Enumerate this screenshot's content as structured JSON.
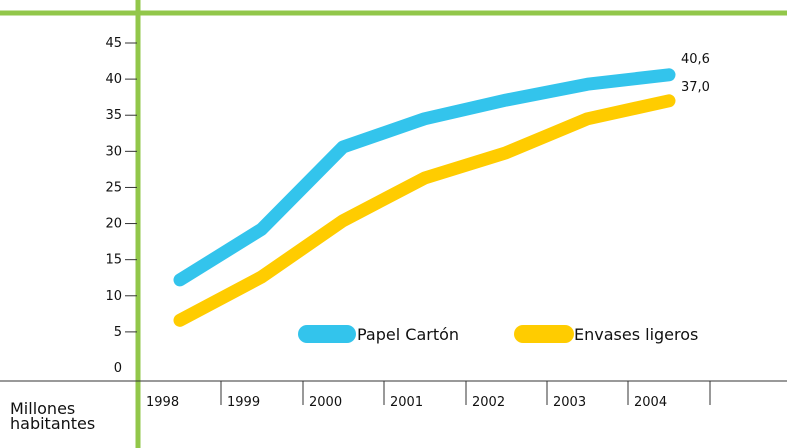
{
  "chart_data": {
    "type": "line",
    "categories": [
      "1998",
      "1999",
      "2000",
      "2001",
      "2002",
      "2003",
      "2004"
    ],
    "y_ticks": [
      "0",
      "5",
      "10",
      "15",
      "20",
      "25",
      "30",
      "35",
      "40",
      "45"
    ],
    "ylim": [
      0,
      45
    ],
    "ylabel": [
      "Millones",
      "habitantes"
    ],
    "series": [
      {
        "name": "Papel Cartón",
        "color": "#33c4ec",
        "values": [
          12.2,
          19.2,
          30.6,
          34.5,
          37.1,
          39.3,
          40.6
        ],
        "end_label": "40,6"
      },
      {
        "name": "Envases ligeros",
        "color": "#ffcc00",
        "values": [
          6.6,
          12.6,
          20.4,
          26.3,
          29.8,
          34.5,
          37.0
        ],
        "end_label": "37,0"
      }
    ],
    "frame_color": "#92c74a",
    "grid": false,
    "legend_position": "bottom-right"
  }
}
